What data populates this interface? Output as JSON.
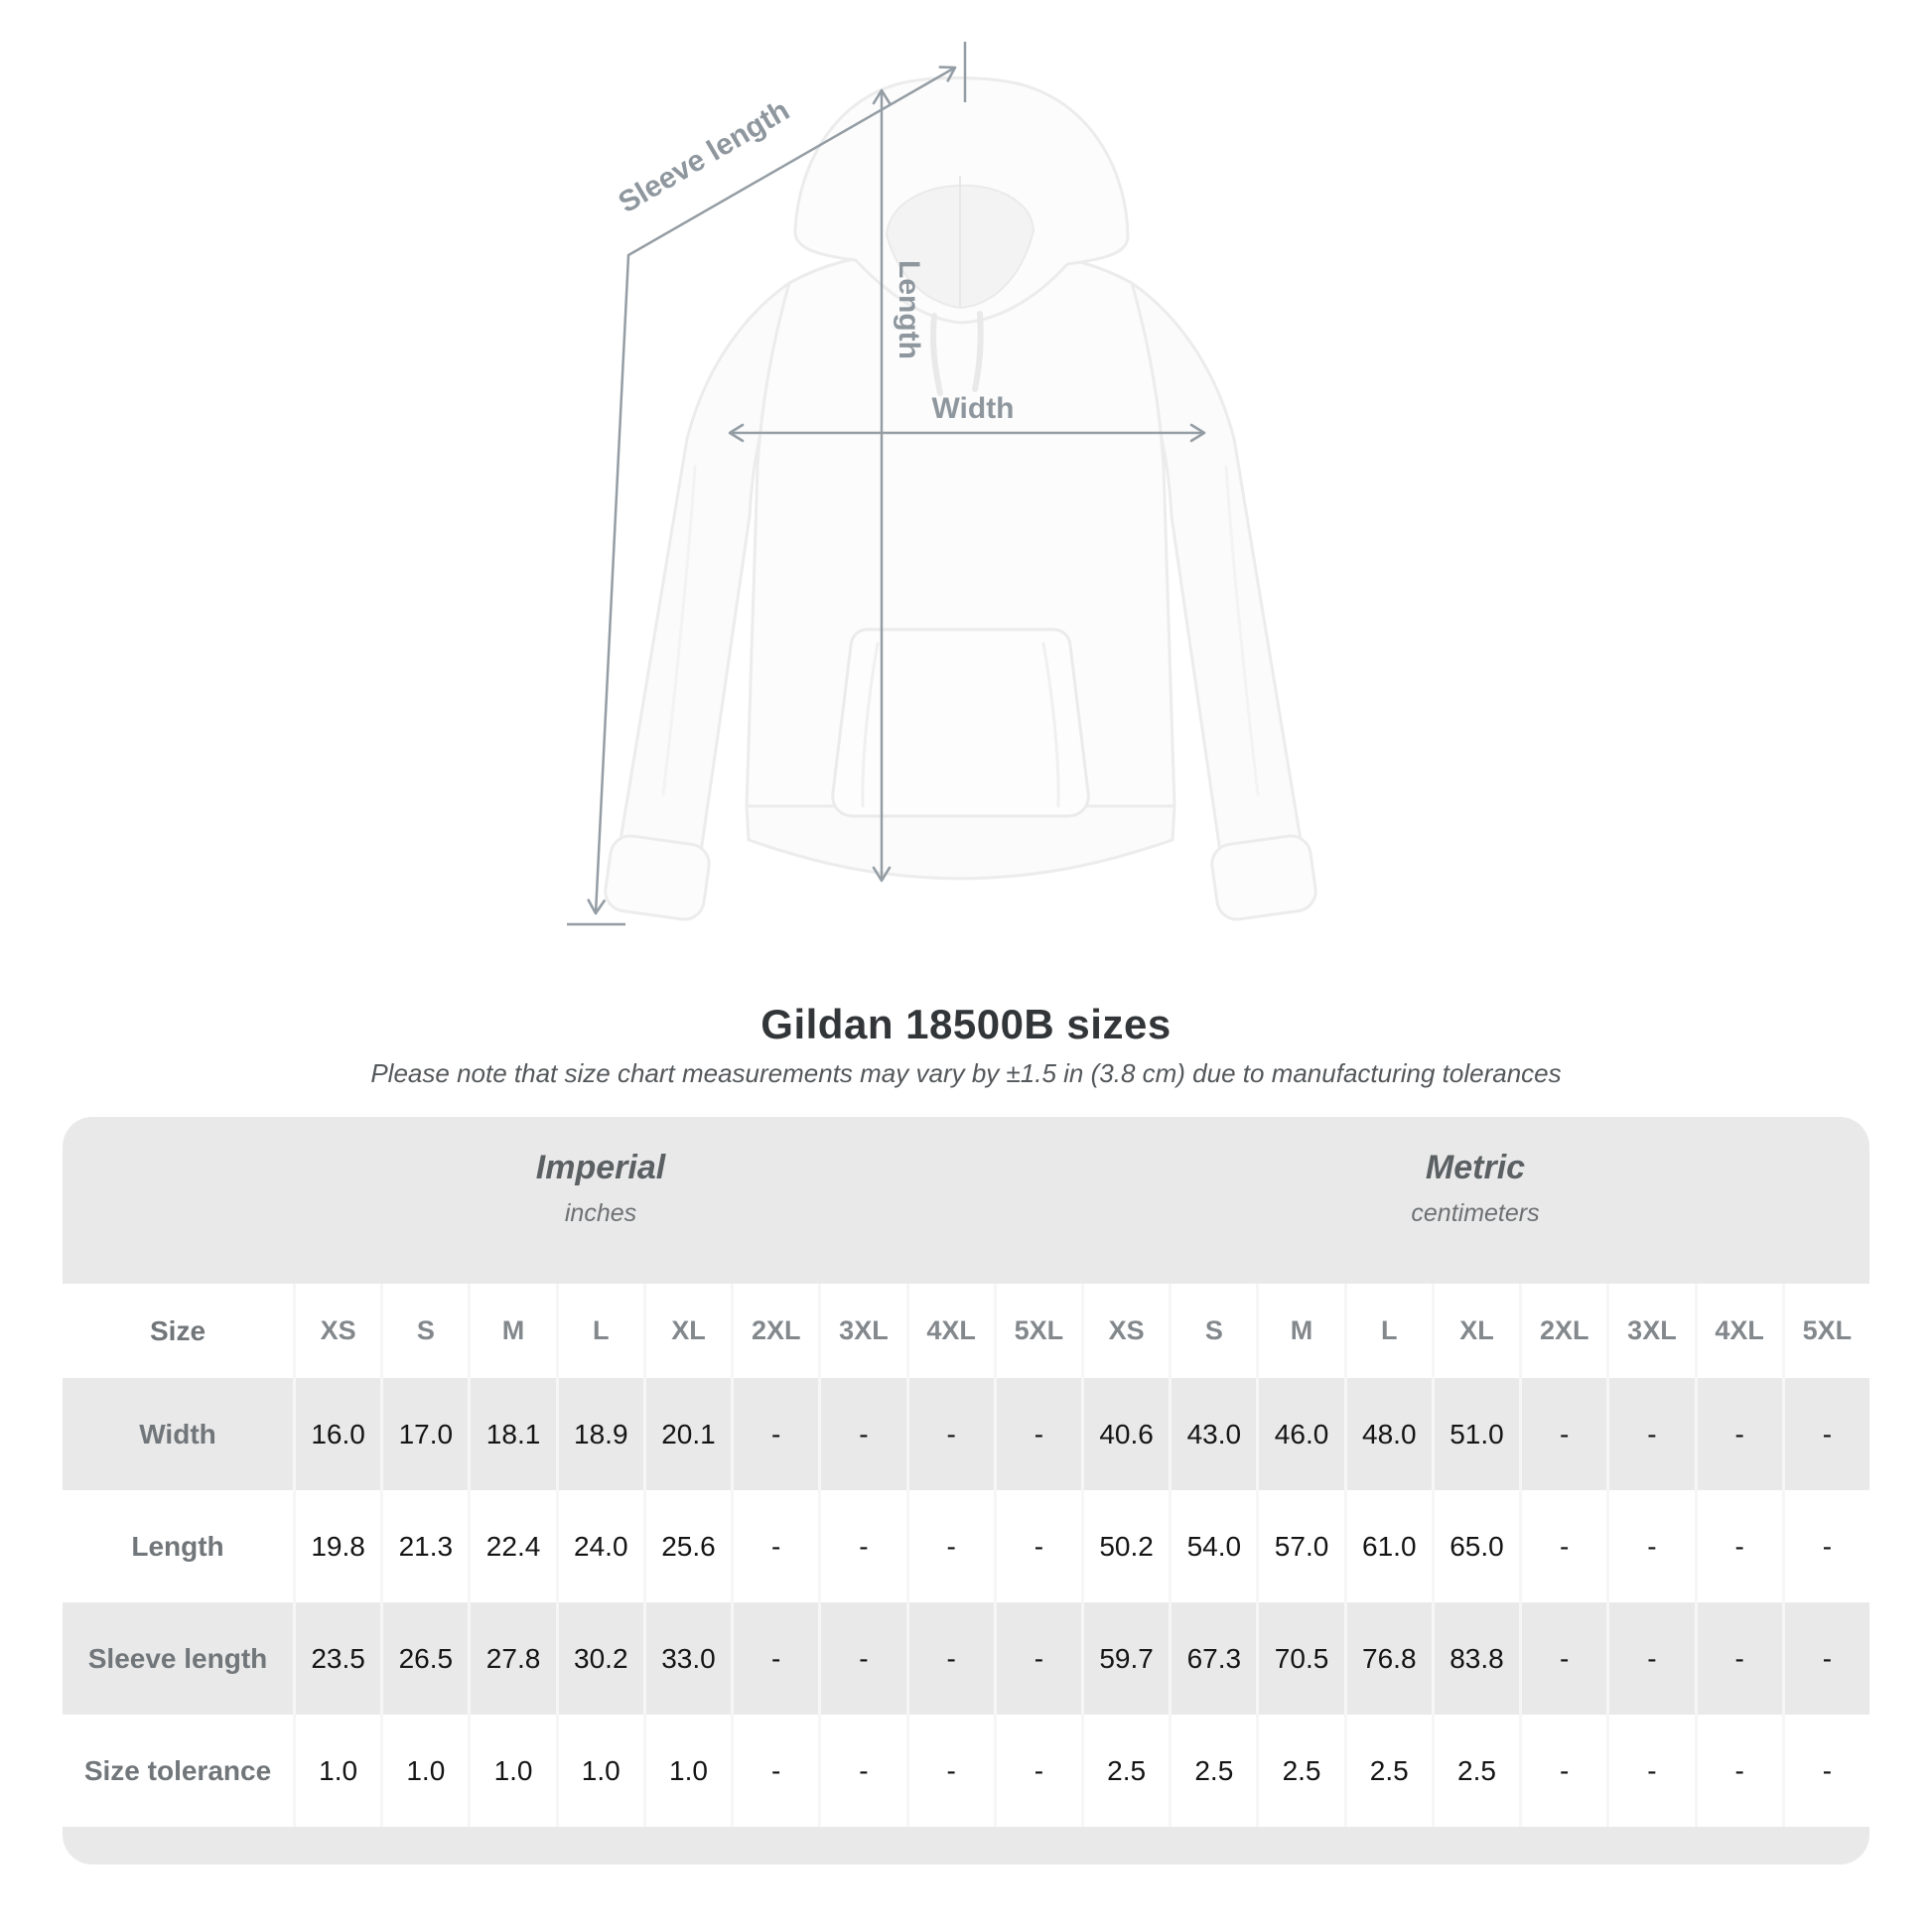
{
  "diagram": {
    "sleeve_length_label": "Sleeve length",
    "length_label": "Length",
    "width_label": "Width",
    "line_color": "#949da4"
  },
  "heading": {
    "title": "Gildan 18500B sizes",
    "subtitle": "Please note that size chart measurements may vary by ±1.5 in (3.8 cm) due to manufacturing tolerances"
  },
  "size_chart": {
    "unit_groups": [
      {
        "label": "Imperial",
        "sublabel": "inches"
      },
      {
        "label": "Metric",
        "sublabel": "centimeters"
      }
    ],
    "size_column_label": "Size",
    "sizes": [
      "XS",
      "S",
      "M",
      "L",
      "XL",
      "2XL",
      "3XL",
      "4XL",
      "5XL"
    ],
    "rows": [
      {
        "label": "Width",
        "imperial": [
          "16.0",
          "17.0",
          "18.1",
          "18.9",
          "20.1",
          "-",
          "-",
          "-",
          "-"
        ],
        "metric": [
          "40.6",
          "43.0",
          "46.0",
          "48.0",
          "51.0",
          "-",
          "-",
          "-",
          "-"
        ]
      },
      {
        "label": "Length",
        "imperial": [
          "19.8",
          "21.3",
          "22.4",
          "24.0",
          "25.6",
          "-",
          "-",
          "-",
          "-"
        ],
        "metric": [
          "50.2",
          "54.0",
          "57.0",
          "61.0",
          "65.0",
          "-",
          "-",
          "-",
          "-"
        ]
      },
      {
        "label": "Sleeve length",
        "imperial": [
          "23.5",
          "26.5",
          "27.8",
          "30.2",
          "33.0",
          "-",
          "-",
          "-",
          "-"
        ],
        "metric": [
          "59.7",
          "67.3",
          "70.5",
          "76.8",
          "83.8",
          "-",
          "-",
          "-",
          "-"
        ]
      },
      {
        "label": "Size tolerance",
        "imperial": [
          "1.0",
          "1.0",
          "1.0",
          "1.0",
          "1.0",
          "-",
          "-",
          "-",
          "-"
        ],
        "metric": [
          "2.5",
          "2.5",
          "2.5",
          "2.5",
          "2.5",
          "-",
          "-",
          "-",
          "-"
        ]
      }
    ]
  }
}
